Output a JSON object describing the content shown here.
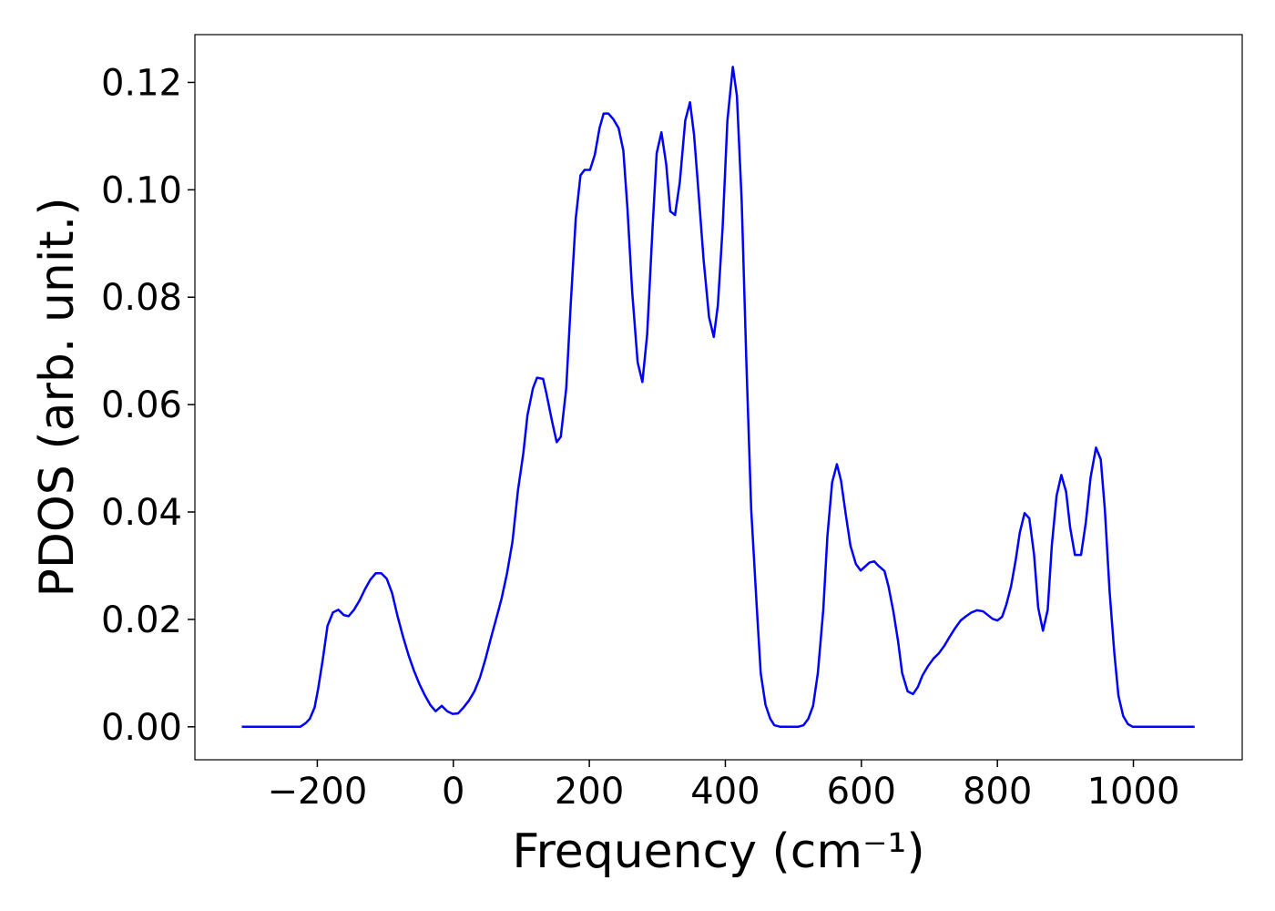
{
  "chart_data": {
    "type": "line",
    "x_label": "Frequency (cm⁻¹)",
    "y_label": "PDOS (arb. unit.)",
    "xlim": [
      -380,
      1160
    ],
    "ylim": [
      -0.00614,
      0.1289
    ],
    "xticks": [
      {
        "value": -200,
        "label": "−200"
      },
      0,
      200,
      400,
      600,
      800,
      1000
    ],
    "yticks": [
      {
        "value": 0,
        "label": "0.00"
      },
      0.02,
      0.04,
      0.06,
      0.08,
      {
        "value": 0.1,
        "label": "0.10"
      },
      0.12
    ],
    "series": [
      {
        "color": "#0000ff",
        "x": [
          -311,
          -225,
          -217,
          -211,
          -204,
          -199,
          -192,
          -185,
          -177,
          -169,
          -161,
          -154,
          -146,
          -138,
          -130,
          -122,
          -114,
          -106,
          -98,
          -90,
          -82,
          -74,
          -66,
          -58,
          -50,
          -42,
          -34,
          -26,
          -17,
          -9,
          -1,
          7,
          15,
          23,
          31,
          39,
          47,
          55,
          63,
          71,
          79,
          87,
          95,
          103,
          109,
          117,
          123,
          132,
          137,
          145,
          152,
          158,
          166,
          173,
          180,
          187,
          193,
          201,
          208,
          215,
          221,
          228,
          235,
          243,
          250,
          256,
          263,
          271,
          278,
          285,
          293,
          299,
          306,
          313,
          319,
          326,
          333,
          341,
          348,
          354,
          361,
          368,
          376,
          383,
          389,
          396,
          403,
          411,
          417,
          424,
          431,
          438,
          446,
          452,
          459,
          466,
          472,
          481,
          507,
          515,
          522,
          529,
          536,
          544,
          550,
          557,
          564,
          570,
          577,
          584,
          592,
          599,
          605,
          612,
          619,
          625,
          634,
          640,
          647,
          654,
          660,
          668,
          676,
          683,
          690,
          698,
          706,
          714,
          722,
          730,
          738,
          746,
          754,
          762,
          770,
          779,
          786,
          793,
          800,
          807,
          813,
          820,
          827,
          833,
          840,
          847,
          854,
          860,
          867,
          874,
          880,
          887,
          894,
          901,
          907,
          914,
          923,
          930,
          937,
          945,
          952,
          958,
          965,
          972,
          978,
          985,
          992,
          999,
          1090
        ],
        "values": [
          0,
          0,
          0.0007,
          0.0015,
          0.0036,
          0.0069,
          0.0125,
          0.0188,
          0.0213,
          0.0218,
          0.0208,
          0.0206,
          0.0218,
          0.0235,
          0.0256,
          0.0274,
          0.0286,
          0.0286,
          0.0276,
          0.0249,
          0.0206,
          0.0168,
          0.0134,
          0.0105,
          0.008,
          0.0059,
          0.0041,
          0.0029,
          0.0039,
          0.0029,
          0.0024,
          0.0025,
          0.0036,
          0.0049,
          0.0066,
          0.0091,
          0.0125,
          0.0164,
          0.0201,
          0.0239,
          0.0286,
          0.0345,
          0.044,
          0.051,
          0.058,
          0.063,
          0.065,
          0.0648,
          0.062,
          0.057,
          0.053,
          0.054,
          0.063,
          0.0795,
          0.0946,
          0.1027,
          0.1037,
          0.1037,
          0.1065,
          0.1115,
          0.1142,
          0.1142,
          0.1132,
          0.1115,
          0.1073,
          0.0966,
          0.081,
          0.0679,
          0.0642,
          0.073,
          0.093,
          0.1068,
          0.1107,
          0.1048,
          0.096,
          0.0953,
          0.1014,
          0.1129,
          0.1163,
          0.1102,
          0.0988,
          0.087,
          0.0763,
          0.0726,
          0.0785,
          0.093,
          0.1129,
          0.1229,
          0.1175,
          0.098,
          0.0675,
          0.0405,
          0.0227,
          0.01,
          0.0041,
          0.0015,
          0.0003,
          0,
          0,
          0.0003,
          0.0015,
          0.0039,
          0.01,
          0.0218,
          0.0354,
          0.0455,
          0.0489,
          0.0459,
          0.0396,
          0.0337,
          0.0303,
          0.0291,
          0.0298,
          0.0306,
          0.0308,
          0.03,
          0.029,
          0.0261,
          0.0215,
          0.0159,
          0.01,
          0.0066,
          0.0061,
          0.0074,
          0.0096,
          0.0113,
          0.0127,
          0.0137,
          0.0151,
          0.0168,
          0.0184,
          0.0198,
          0.0206,
          0.0213,
          0.0217,
          0.0215,
          0.0208,
          0.0201,
          0.0198,
          0.0205,
          0.0227,
          0.0261,
          0.0311,
          0.0362,
          0.0398,
          0.0388,
          0.032,
          0.0222,
          0.0179,
          0.0218,
          0.0337,
          0.043,
          0.0469,
          0.0438,
          0.0371,
          0.032,
          0.032,
          0.038,
          0.0464,
          0.052,
          0.0498,
          0.0405,
          0.0252,
          0.0137,
          0.0058,
          0.002,
          0.0005,
          0,
          0
        ]
      }
    ]
  }
}
